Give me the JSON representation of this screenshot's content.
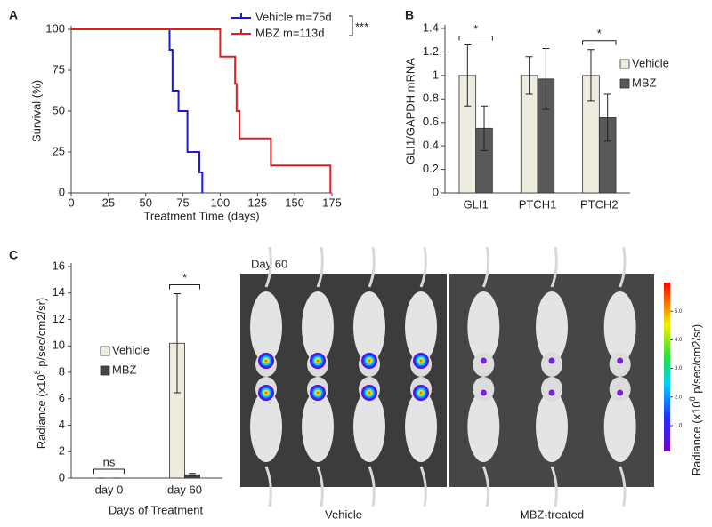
{
  "chart_data": [
    {
      "type": "line",
      "step": true,
      "label": "A",
      "x_label": "Treatment Time (days)",
      "y_label": "Survival (%)",
      "series": [
        {
          "name": "Vehicle m=75d",
          "color": "#1a1ad6",
          "x": [
            0,
            66,
            68,
            72,
            78,
            86,
            88
          ],
          "values": [
            100,
            87.5,
            62.5,
            50,
            25,
            12.5,
            0
          ]
        },
        {
          "name": "MBZ m=113d",
          "color": "#e51c1c",
          "x": [
            0,
            100,
            110,
            111,
            113,
            134,
            174
          ],
          "values": [
            100,
            83.3,
            66.7,
            50,
            33.3,
            16.7,
            0
          ]
        }
      ],
      "xlim": [
        0,
        175
      ],
      "xticks": [
        0,
        25,
        50,
        75,
        100,
        125,
        150,
        175
      ],
      "ylim": [
        0,
        100
      ],
      "yticks": [
        0,
        25,
        50,
        75,
        100
      ],
      "annotations": [
        "***"
      ]
    },
    {
      "type": "bar",
      "label": "B",
      "y_label": "GLI1/GAPDH mRNA",
      "categories": [
        "GLI1",
        "PTCH1",
        "PTCH2"
      ],
      "series": [
        {
          "name": "Vehicle",
          "color": "#eeebdf",
          "values": [
            1,
            1,
            1
          ],
          "errors": [
            0.26,
            0.16,
            0.22
          ]
        },
        {
          "name": "MBZ",
          "color": "#595959",
          "values": [
            0.55,
            0.97,
            0.64
          ],
          "errors": [
            0.19,
            0.26,
            0.2
          ]
        }
      ],
      "ylim": [
        0,
        1.4
      ],
      "yticks": [
        0,
        0.2,
        0.4,
        0.6,
        0.8,
        1,
        1.2,
        1.4
      ],
      "annotations": [
        "*",
        "*"
      ]
    },
    {
      "type": "bar",
      "label": "C",
      "y_label": {
        "text": "Radiance (x10",
        "sup": "8",
        "tail": " p/sec/cm2/sr)"
      },
      "x_label": "Days of Treatment",
      "categories": [
        "day 0",
        "day 60"
      ],
      "series": [
        {
          "name": "Vehicle",
          "color": "#eeebdf",
          "values": [
            0,
            10.2
          ],
          "errors": [
            0,
            3.75
          ]
        },
        {
          "name": "MBZ",
          "color": "#444444",
          "values": [
            0,
            0.25
          ],
          "errors": [
            0,
            0.1
          ]
        }
      ],
      "ylim": [
        0,
        16
      ],
      "yticks": [
        0,
        2,
        4,
        6,
        8,
        10,
        12,
        14,
        16
      ],
      "annotations": [
        "ns",
        "*"
      ]
    }
  ],
  "image_panel": {
    "title": "Day 60",
    "groups": [
      "Vehicle",
      "MBZ-treated"
    ],
    "colorbar": {
      "label": {
        "text": "Radiance (x10",
        "sup": "8",
        "tail": " p/sec/cm2/sr)"
      },
      "lim": [
        0.1,
        6
      ],
      "ticks": [
        {
          "value": 1,
          "label": "1.0"
        },
        {
          "value": 2,
          "label": "2.0"
        },
        {
          "value": 3,
          "label": "3.0"
        },
        {
          "value": 4,
          "label": "4.0"
        },
        {
          "value": 5,
          "label": "5.0"
        }
      ]
    }
  }
}
